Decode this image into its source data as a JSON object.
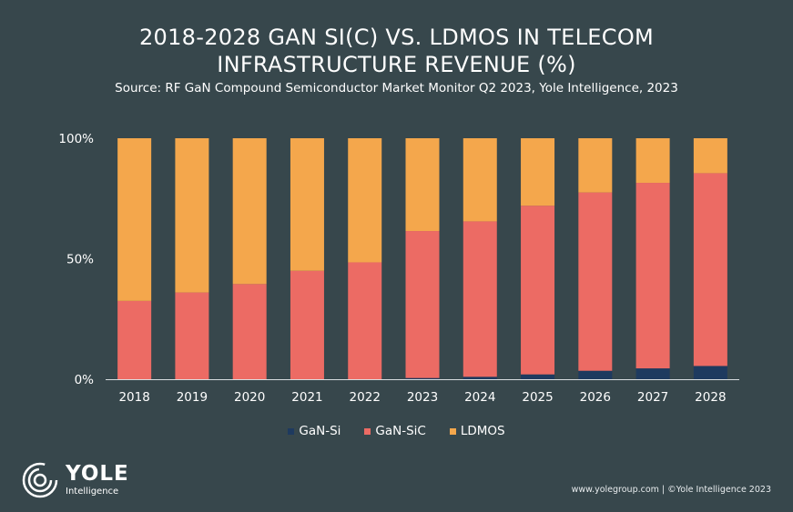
{
  "header": {
    "title_line1": "2018-2028 GAN SI(C) VS. LDMOS IN TELECOM",
    "title_line2": "INFRASTRUCTURE REVENUE (%)",
    "subtitle": "Source: RF GaN Compound Semiconductor Market Monitor Q2 2023,  Yole Intelligence, 2023"
  },
  "chart_data": {
    "type": "bar",
    "stacked": true,
    "title": "2018-2028 GAN SI(C) VS. LDMOS IN TELECOM INFRASTRUCTURE REVENUE (%)",
    "subtitle": "Source: RF GaN Compound Semiconductor Market Monitor Q2 2023,  Yole Intelligence, 2023",
    "categories": [
      "2018",
      "2019",
      "2020",
      "2021",
      "2022",
      "2023",
      "2024",
      "2025",
      "2026",
      "2027",
      "2028"
    ],
    "series": [
      {
        "name": "GaN-Si",
        "color": "#1e3a5f",
        "values": [
          0,
          0,
          0,
          0,
          0,
          0.5,
          1,
          2,
          3.5,
          4.5,
          5.5
        ]
      },
      {
        "name": "GaN-SiC",
        "color": "#ec6b64",
        "values": [
          32.5,
          36,
          39.5,
          45,
          48.5,
          61,
          64.5,
          70,
          74,
          77,
          80
        ]
      },
      {
        "name": "LDMOS",
        "color": "#f4a74c",
        "values": [
          67.5,
          64,
          60.5,
          55,
          51.5,
          38.5,
          34.5,
          28,
          22.5,
          18.5,
          14.5
        ]
      }
    ],
    "yticks": [
      "0%",
      "50%",
      "100%"
    ],
    "ylim": [
      0,
      100
    ],
    "legend_position": "bottom",
    "grid": false
  },
  "branding": {
    "logo_main": "YOLE",
    "logo_sub": "Intelligence",
    "footer": "www.yolegroup.com | ©Yole Intelligence 2023"
  }
}
